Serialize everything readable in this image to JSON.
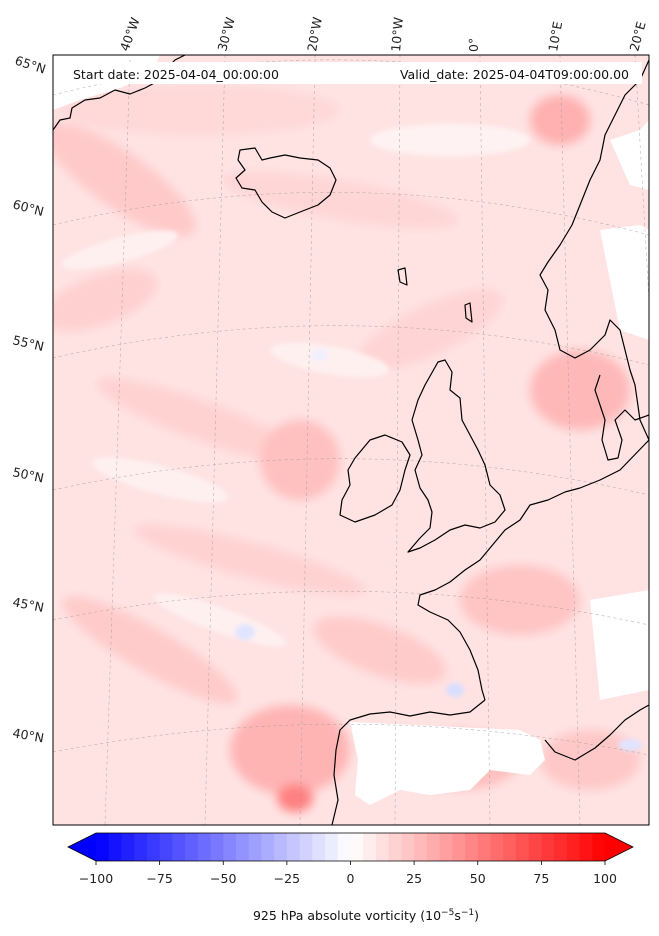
{
  "header": {
    "start_date": "Start date: 2025-04-04_00:00:00",
    "valid_date": "Valid_date: 2025-04-04T09:00:00.00"
  },
  "map": {
    "lon_labels": [
      "40°W",
      "30°W",
      "20°W",
      "10°W",
      "0°",
      "10°E",
      "20°E"
    ],
    "lat_labels": [
      "65°N",
      "60°N",
      "55°N",
      "50°N",
      "45°N",
      "40°N"
    ],
    "land_masked": "white",
    "coastline_color": "#000000"
  },
  "colorbar": {
    "title_prefix": "925 hPa absolute vorticity (10",
    "title_exp1": "−5",
    "title_mid": "s",
    "title_exp2": "−1",
    "title_suffix": ")",
    "ticks": [
      "−100",
      "−75",
      "−50",
      "−25",
      "0",
      "25",
      "50",
      "75",
      "100"
    ],
    "min": -100,
    "max": 100,
    "step": 5,
    "colors": {
      "low": "#0000ff",
      "mid": "#ffffff",
      "high": "#ff0000"
    }
  }
}
